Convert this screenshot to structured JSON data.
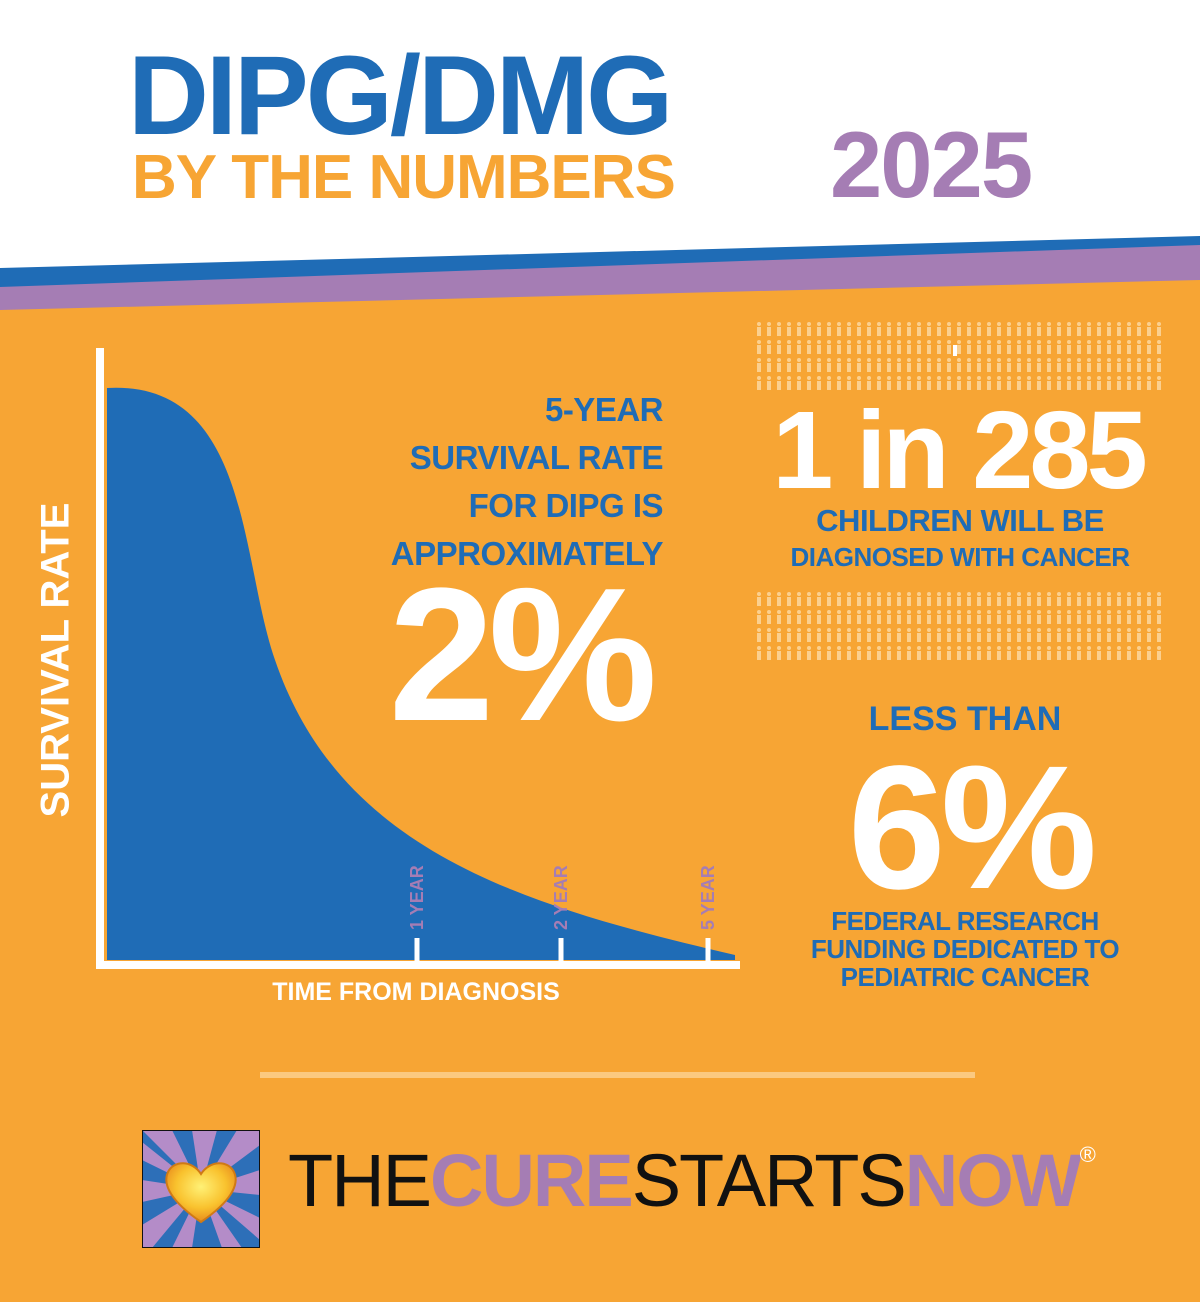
{
  "header": {
    "title_line1": "DIPG/DMG",
    "title_line2": "BY THE NUMBERS",
    "year": "2025"
  },
  "colors": {
    "orange": "#f7a534",
    "blue": "#1f6cb6",
    "purple": "#a57db4",
    "white": "#ffffff"
  },
  "chart_data": {
    "type": "area",
    "ylabel": "SURVIVAL RATE",
    "xlabel": "TIME FROM DIAGNOSIS",
    "tick_labels": [
      "1 YEAR",
      "2 YEAR",
      "5 YEAR"
    ],
    "grid": false,
    "legend": "none"
  },
  "survival": {
    "lines": [
      "5-YEAR",
      "SURVIVAL RATE",
      "FOR DIPG IS",
      "APPROXIMATELY"
    ],
    "value": "2%"
  },
  "incidence": {
    "value": "1 in 285",
    "lines": [
      "CHILDREN WILL BE",
      "DIAGNOSED WITH CANCER"
    ]
  },
  "funding": {
    "prefix": "LESS THAN",
    "value": "6%",
    "lines": [
      "FEDERAL RESEARCH",
      "FUNDING DEDICATED TO",
      "PEDIATRIC CANCER"
    ]
  },
  "brand": {
    "part1": "THE",
    "part2": "CURE",
    "part3": "STARTS",
    "part4": "NOW",
    "reg": "®",
    "logo_icon": "heart-sunburst-icon"
  }
}
